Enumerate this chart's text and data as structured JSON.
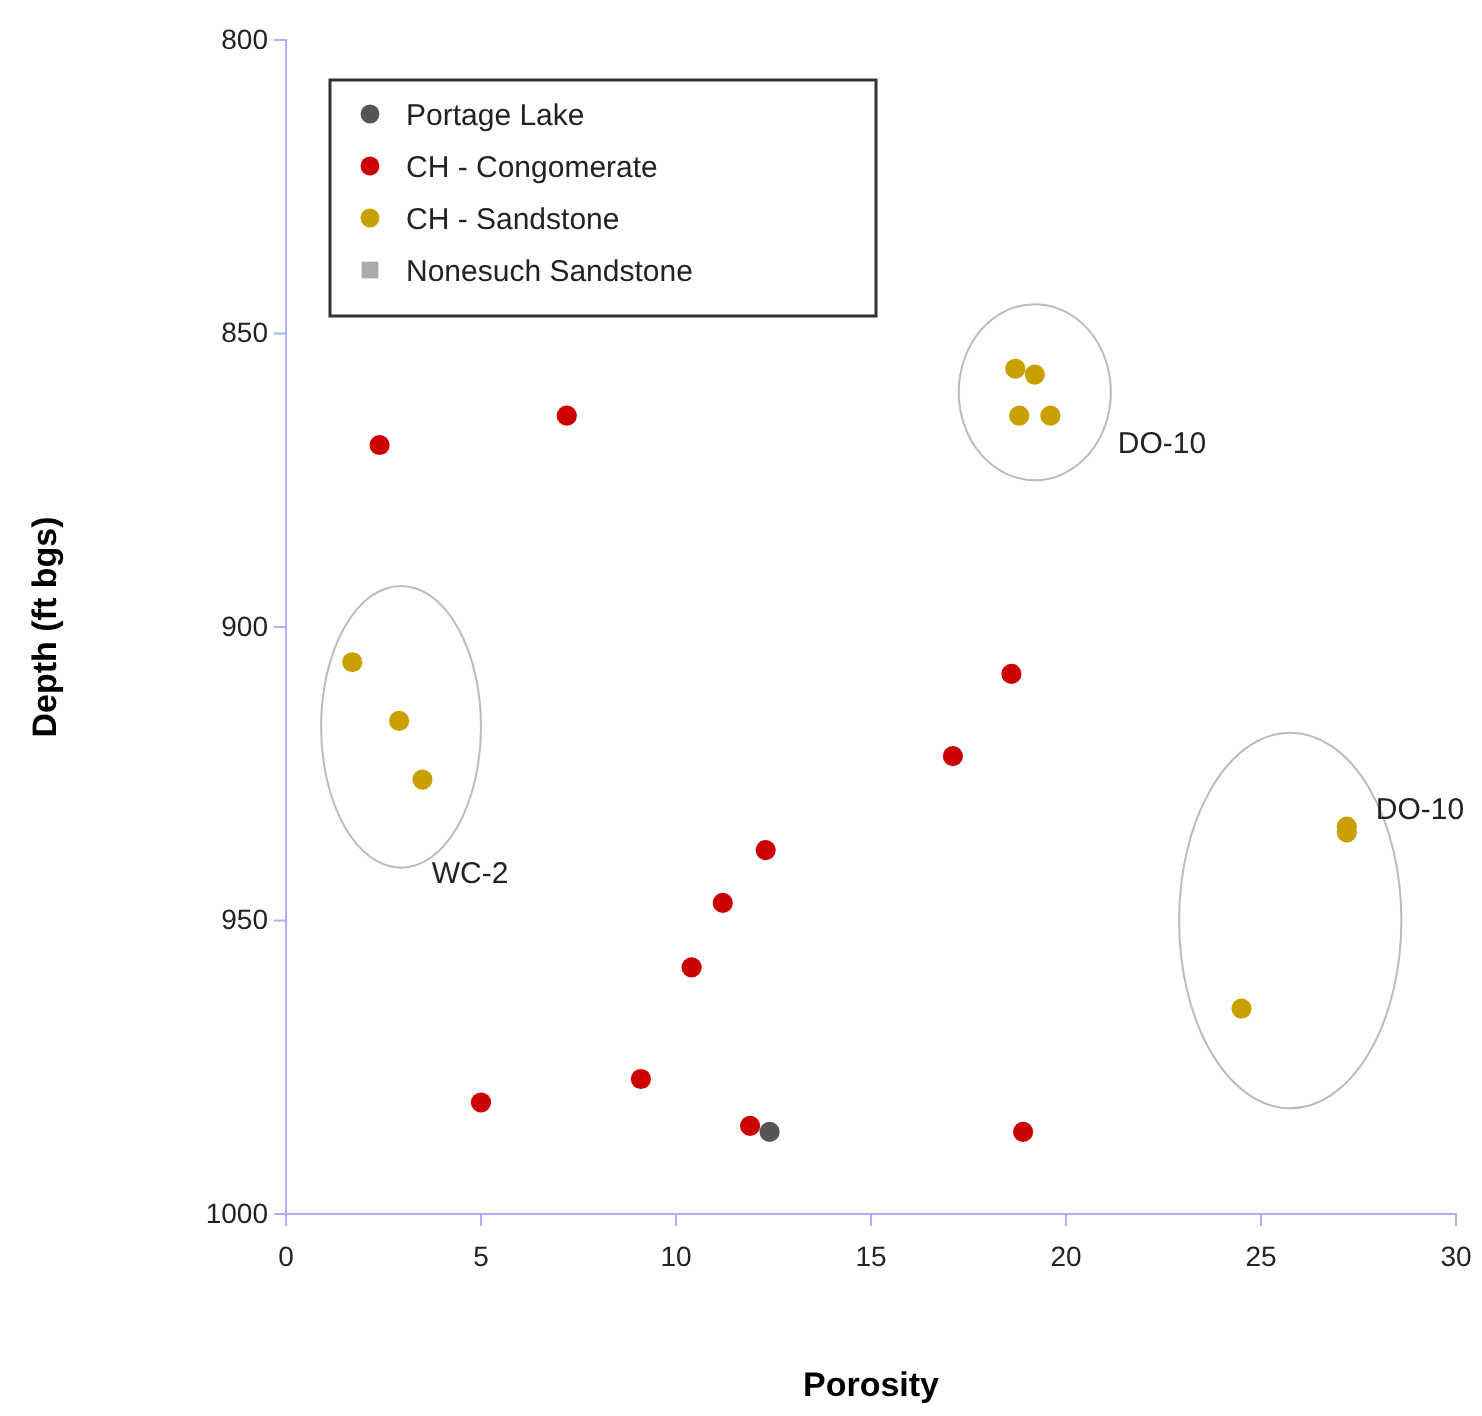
{
  "chart_data": {
    "type": "scatter",
    "xlabel": "Porosity",
    "ylabel": "Depth (ft bgs)",
    "xlim": [
      0,
      30
    ],
    "xticks": [
      0,
      5,
      10,
      15,
      20,
      25,
      30
    ],
    "ylim": [
      1000,
      800
    ],
    "yticks": [
      800,
      850,
      900,
      950,
      1000
    ],
    "grid": false,
    "legend": "top left",
    "series": [
      {
        "name": "Portage Lake",
        "color": "#555555",
        "marker": "circle",
        "x": [
          12.4
        ],
        "values": [
          986
        ]
      },
      {
        "name": "CH - Congomerate",
        "color": "#cc0000",
        "marker": "circle",
        "x": [
          2.4,
          7.2,
          18.6,
          17.1,
          12.3,
          11.2,
          10.4,
          9.1,
          5.0,
          11.9,
          18.9
        ],
        "values": [
          869,
          864,
          908,
          922,
          938,
          947,
          958,
          977,
          981,
          985,
          986
        ]
      },
      {
        "name": "CH - Sandstone",
        "color": "#c8a000",
        "marker": "circle",
        "x": [
          1.7,
          2.9,
          3.5,
          18.7,
          19.2,
          18.8,
          19.6,
          27.2,
          27.2,
          24.5
        ],
        "values": [
          906,
          916,
          926,
          856,
          857,
          864,
          864,
          934,
          935,
          965
        ]
      },
      {
        "name": "Nonesuch Sandstone",
        "color": "#aaaaaa",
        "marker": "square"
      }
    ],
    "annotations": [
      "WC-2",
      "DO-10",
      "DO-10"
    ]
  }
}
